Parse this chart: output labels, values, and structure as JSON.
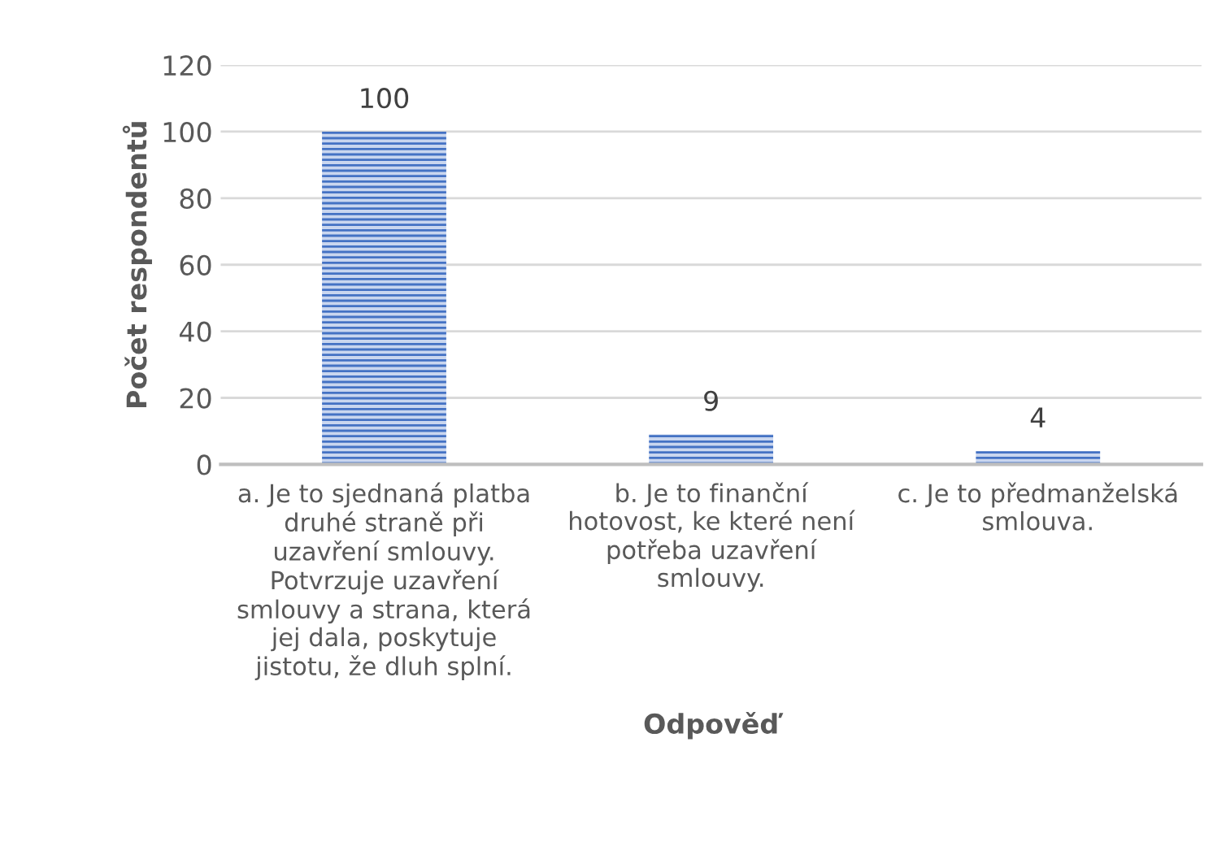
{
  "chart_data": {
    "type": "bar",
    "xlabel": "Odpověď",
    "ylabel": "Počet respondentů",
    "categories": [
      "a. Je to sjednaná platba\ndruhé straně při\nuzavření smlouvy.\nPotvrzuje uzavření\nsmlouvy a strana, která\njej dala, poskytuje\njistotu, že dluh splní.",
      "b. Je to finanční\nhotovost, ke které není\npotřeba uzavření\nsmlouvy.",
      "c. Je to předmanželská\nsmlouva."
    ],
    "values": [
      100,
      9,
      4
    ],
    "color": "#4472c4",
    "ylim": [
      0,
      120
    ],
    "yticks": [
      0,
      20,
      40,
      60,
      80,
      100,
      120
    ],
    "grid": "y",
    "data_labels": true
  }
}
